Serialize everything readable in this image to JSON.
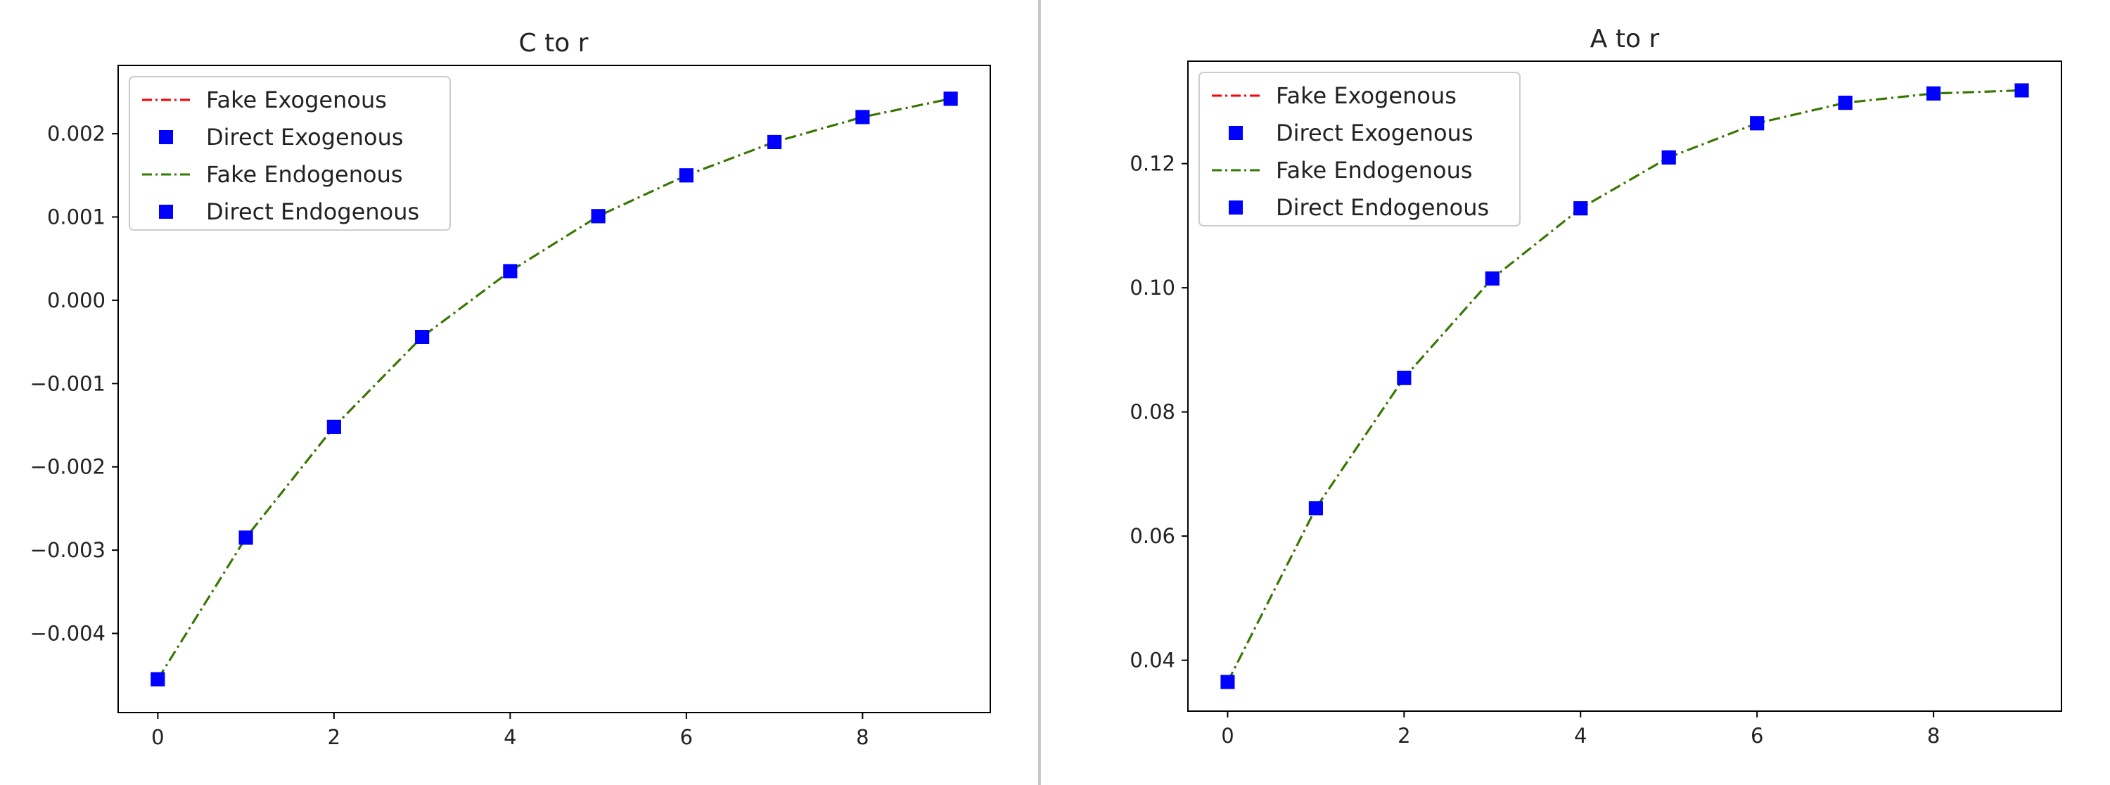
{
  "colors": {
    "fake_exogenous": "#ff0000",
    "direct_exogenous": "#0000ff",
    "fake_endogenous": "#2e7d00",
    "direct_endogenous": "#0000ff",
    "axes": "#000000",
    "divider": "#c8c8c8"
  },
  "chart_data": [
    {
      "type": "line",
      "title": "C to r",
      "xlabel": "",
      "ylabel": "",
      "xlim": [
        -0.45,
        9.45
      ],
      "ylim": [
        -0.00495,
        0.00282
      ],
      "xticks": [
        0,
        2,
        4,
        6,
        8
      ],
      "xtick_labels": [
        "0",
        "2",
        "4",
        "6",
        "8"
      ],
      "yticks": [
        -0.004,
        -0.003,
        -0.002,
        -0.001,
        0.0,
        0.001,
        0.002
      ],
      "ytick_labels": [
        "−0.004",
        "−0.003",
        "−0.002",
        "−0.001",
        "0.000",
        "0.001",
        "0.002"
      ],
      "grid": false,
      "legend_position": "top-left",
      "x": [
        0,
        1,
        2,
        3,
        4,
        5,
        6,
        7,
        8,
        9
      ],
      "series": [
        {
          "name": "Fake Exogenous",
          "style": "dashdot-line",
          "color": "#ff0000",
          "values": [
            -0.00455,
            -0.00285,
            -0.00152,
            -0.00044,
            0.00035,
            0.00101,
            0.0015,
            0.0019,
            0.0022,
            0.00242
          ]
        },
        {
          "name": "Direct Exogenous",
          "style": "square-marker",
          "color": "#0000ff",
          "values": [
            -0.00455,
            -0.00285,
            -0.00152,
            -0.00044,
            0.00035,
            0.00101,
            0.0015,
            0.0019,
            0.0022,
            0.00242
          ]
        },
        {
          "name": "Fake Endogenous",
          "style": "dashdot-line",
          "color": "#2e7d00",
          "values": [
            -0.00455,
            -0.00285,
            -0.00152,
            -0.00044,
            0.00035,
            0.00101,
            0.0015,
            0.0019,
            0.0022,
            0.00242
          ]
        },
        {
          "name": "Direct Endogenous",
          "style": "square-marker",
          "color": "#0000ff",
          "values": [
            -0.00455,
            -0.00285,
            -0.00152,
            -0.00044,
            0.00035,
            0.00101,
            0.0015,
            0.0019,
            0.0022,
            0.00242
          ]
        }
      ]
    },
    {
      "type": "line",
      "title": "A to r",
      "xlabel": "",
      "ylabel": "",
      "xlim": [
        -0.45,
        9.45
      ],
      "ylim": [
        0.0318,
        0.1365
      ],
      "xticks": [
        0,
        2,
        4,
        6,
        8
      ],
      "xtick_labels": [
        "0",
        "2",
        "4",
        "6",
        "8"
      ],
      "yticks": [
        0.04,
        0.06,
        0.08,
        0.1,
        0.12
      ],
      "ytick_labels": [
        "0.04",
        "0.06",
        "0.08",
        "0.10",
        "0.12"
      ],
      "grid": false,
      "legend_position": "top-left",
      "x": [
        0,
        1,
        2,
        3,
        4,
        5,
        6,
        7,
        8,
        9
      ],
      "series": [
        {
          "name": "Fake Exogenous",
          "style": "dashdot-line",
          "color": "#ff0000",
          "values": [
            0.0365,
            0.0645,
            0.0855,
            0.1015,
            0.1128,
            0.121,
            0.1265,
            0.1298,
            0.1313,
            0.1318
          ]
        },
        {
          "name": "Direct Exogenous",
          "style": "square-marker",
          "color": "#0000ff",
          "values": [
            0.0365,
            0.0645,
            0.0855,
            0.1015,
            0.1128,
            0.121,
            0.1265,
            0.1298,
            0.1313,
            0.1318
          ]
        },
        {
          "name": "Fake Endogenous",
          "style": "dashdot-line",
          "color": "#2e7d00",
          "values": [
            0.0365,
            0.0645,
            0.0855,
            0.1015,
            0.1128,
            0.121,
            0.1265,
            0.1298,
            0.1313,
            0.1318
          ]
        },
        {
          "name": "Direct Endogenous",
          "style": "square-marker",
          "color": "#0000ff",
          "values": [
            0.0365,
            0.0645,
            0.0855,
            0.1015,
            0.1128,
            0.121,
            0.1265,
            0.1298,
            0.1313,
            0.1318
          ]
        }
      ]
    }
  ]
}
